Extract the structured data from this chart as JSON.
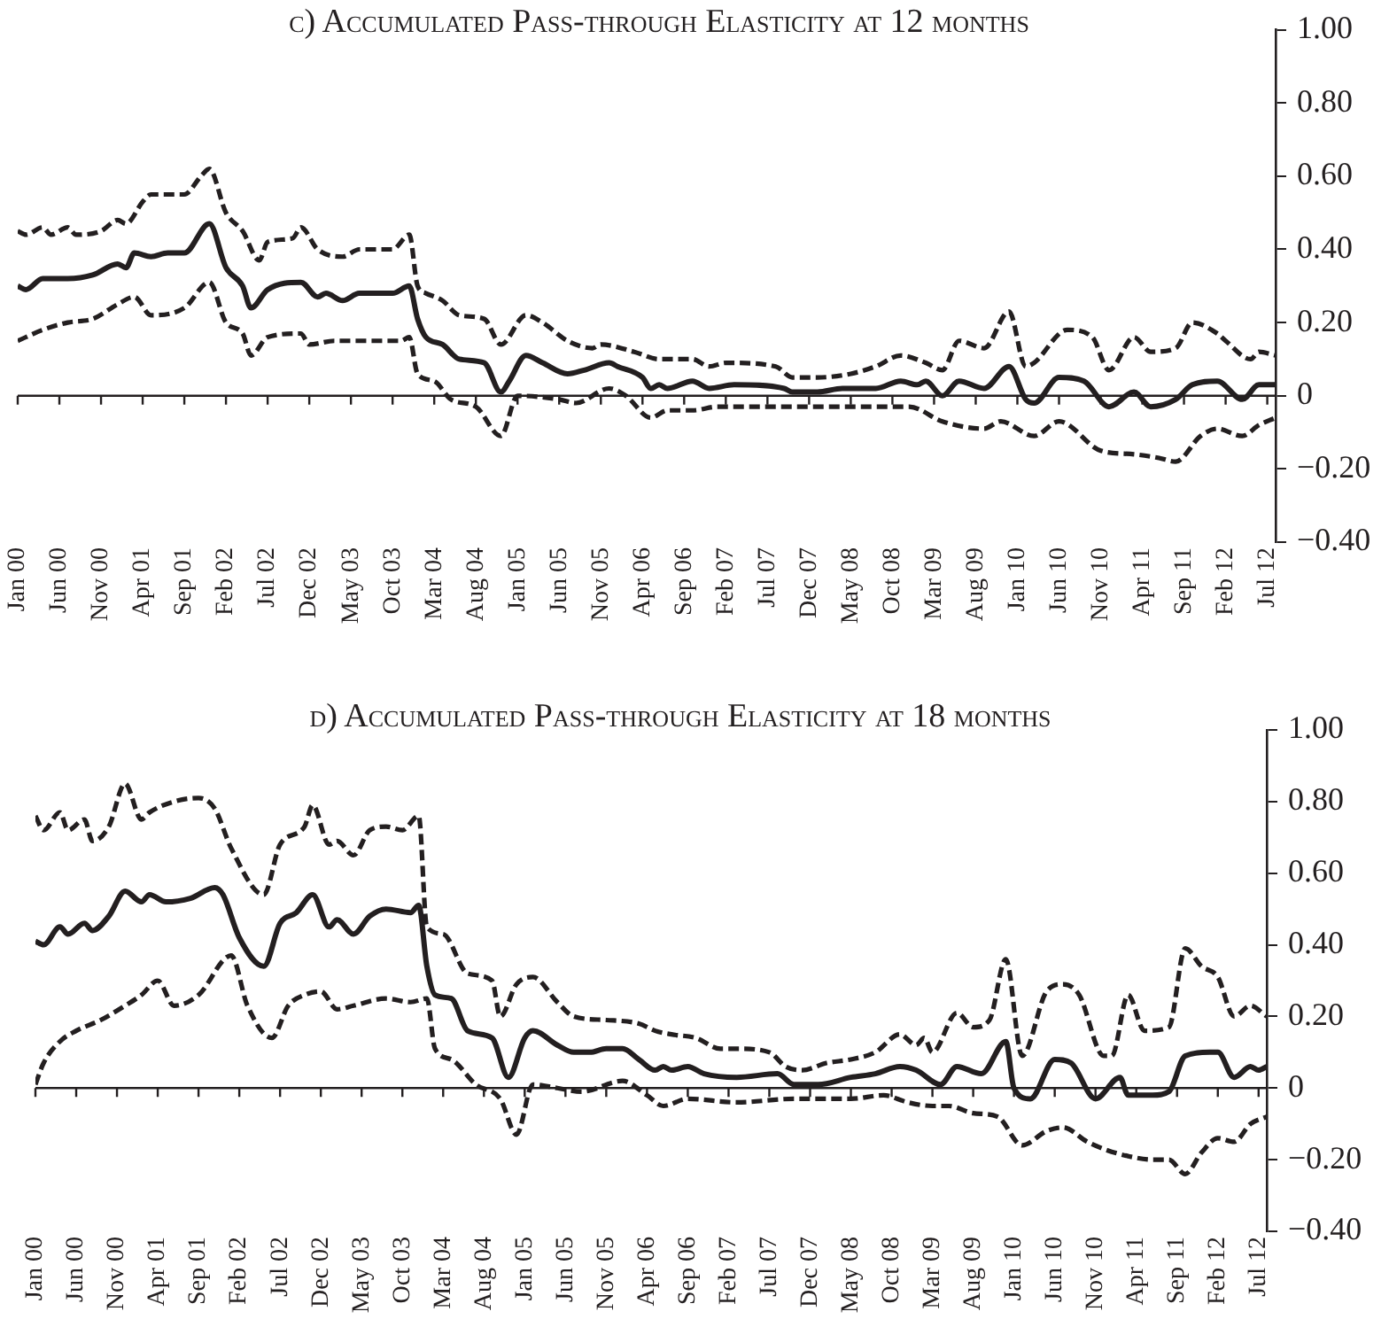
{
  "chart_data": [
    {
      "type": "line",
      "title": "c) Accumulated Pass-through Elasticity at 12 months",
      "xlim": [
        "2000-01",
        "2012-08"
      ],
      "ylim": [
        -0.4,
        1
      ],
      "yticks": [
        {
          "value": -0.4,
          "label": "−0.40"
        },
        {
          "value": -0.2,
          "label": "−0.20"
        },
        0,
        {
          "value": 0.2,
          "label": "0.20"
        },
        {
          "value": 0.4,
          "label": "0.40"
        },
        {
          "value": 0.6,
          "label": "0.60"
        },
        {
          "value": 0.8,
          "label": "0.80"
        },
        {
          "value": 1,
          "label": "1.00"
        }
      ],
      "xticks": [
        {
          "value": "2000-01",
          "label": "Jan 00"
        },
        {
          "value": "2000-06",
          "label": "Jun 00"
        },
        {
          "value": "2000-11",
          "label": "Nov 00"
        },
        {
          "value": "2001-04",
          "label": "Apr 01"
        },
        {
          "value": "2001-09",
          "label": "Sep 01"
        },
        {
          "value": "2002-02",
          "label": "Feb 02"
        },
        {
          "value": "2002-07",
          "label": "Jul 02"
        },
        {
          "value": "2002-12",
          "label": "Dec 02"
        },
        {
          "value": "2003-05",
          "label": "May 03"
        },
        {
          "value": "2003-10",
          "label": "Oct 03"
        },
        {
          "value": "2004-03",
          "label": "Mar 04"
        },
        {
          "value": "2004-08",
          "label": "Aug 04"
        },
        {
          "value": "2005-01",
          "label": "Jan 05"
        },
        {
          "value": "2005-06",
          "label": "Jun 05"
        },
        {
          "value": "2005-11",
          "label": "Nov 05"
        },
        {
          "value": "2006-04",
          "label": "Apr 06"
        },
        {
          "value": "2006-09",
          "label": "Sep 06"
        },
        {
          "value": "2007-02",
          "label": "Feb 07"
        },
        {
          "value": "2007-07",
          "label": "Jul 07"
        },
        {
          "value": "2007-12",
          "label": "Dec 07"
        },
        {
          "value": "2008-05",
          "label": "May 08"
        },
        {
          "value": "2008-10",
          "label": "Oct 08"
        },
        {
          "value": "2009-03",
          "label": "Mar 09"
        },
        {
          "value": "2009-08",
          "label": "Aug 09"
        },
        {
          "value": "2010-01",
          "label": "Jan 10"
        },
        {
          "value": "2010-06",
          "label": "Jun 10"
        },
        {
          "value": "2010-11",
          "label": "Nov 10"
        },
        {
          "value": "2011-04",
          "label": "Apr 11"
        },
        {
          "value": "2011-09",
          "label": "Sep 11"
        },
        {
          "value": "2012-02",
          "label": "Feb 12"
        },
        {
          "value": "2012-07",
          "label": "Jul 12"
        }
      ],
      "marker": "none",
      "series": [
        {
          "color": "#231f20",
          "line_style": "solid",
          "x": [
            "2000-01",
            "2000-02",
            "2000-04",
            "2000-07",
            "2000-10",
            "2001-01",
            "2001-02",
            "2001-03",
            "2001-05",
            "2001-07",
            "2001-09",
            "2001-12",
            "2002-02",
            "2002-04",
            "2002-05",
            "2002-07",
            "2002-11",
            "2003-01",
            "2003-02",
            "2003-04",
            "2003-06",
            "2003-10",
            "2003-12",
            "2004-01",
            "2004-02",
            "2004-04",
            "2004-06",
            "2004-09",
            "2004-11",
            "2004-12",
            "2005-02",
            "2005-04",
            "2005-07",
            "2005-09",
            "2005-12",
            "2006-01",
            "2006-04",
            "2006-05",
            "2006-06",
            "2006-07",
            "2006-10",
            "2006-12",
            "2007-03",
            "2007-09",
            "2007-10",
            "2008-01",
            "2008-04",
            "2008-08",
            "2008-11",
            "2009-01",
            "2009-02",
            "2009-04",
            "2009-06",
            "2009-09",
            "2009-12",
            "2010-02",
            "2010-03",
            "2010-06",
            "2010-09",
            "2010-12",
            "2011-03",
            "2011-05",
            "2011-08",
            "2011-10",
            "2012-01",
            "2012-04",
            "2012-06",
            "2012-08"
          ],
          "values": [
            0.3,
            0.29,
            0.32,
            0.32,
            0.33,
            0.36,
            0.35,
            0.39,
            0.38,
            0.39,
            0.39,
            0.47,
            0.35,
            0.3,
            0.24,
            0.29,
            0.31,
            0.27,
            0.28,
            0.26,
            0.28,
            0.28,
            0.3,
            0.21,
            0.16,
            0.14,
            0.1,
            0.09,
            0.01,
            0.04,
            0.11,
            0.09,
            0.06,
            0.07,
            0.09,
            0.08,
            0.05,
            0.02,
            0.03,
            0.02,
            0.04,
            0.02,
            0.03,
            0.02,
            0.01,
            0.01,
            0.02,
            0.02,
            0.04,
            0.03,
            0.04,
            0,
            0.04,
            0.02,
            0.08,
            -0.01,
            -0.02,
            0.05,
            0.04,
            -0.03,
            0.01,
            -0.03,
            -0.01,
            0.03,
            0.04,
            -0.01,
            0.03,
            0.03
          ]
        },
        {
          "color": "#231f20",
          "line_style": "dashed",
          "x": [
            "2000-01",
            "2000-02",
            "2000-04",
            "2000-05",
            "2000-07",
            "2000-08",
            "2000-11",
            "2001-01",
            "2001-02",
            "2001-04",
            "2001-05",
            "2001-09",
            "2001-11",
            "2001-12",
            "2002-02",
            "2002-04",
            "2002-06",
            "2002-07",
            "2002-10",
            "2002-11",
            "2003-01",
            "2003-04",
            "2003-06",
            "2003-10",
            "2003-12",
            "2004-01",
            "2004-02",
            "2004-04",
            "2004-06",
            "2004-09",
            "2004-11",
            "2005-02",
            "2005-04",
            "2005-07",
            "2005-10",
            "2005-11",
            "2006-03",
            "2006-06",
            "2006-10",
            "2006-12",
            "2007-02",
            "2007-08",
            "2007-10",
            "2008-01",
            "2008-05",
            "2008-08",
            "2008-11",
            "2009-02",
            "2009-04",
            "2009-06",
            "2009-09",
            "2009-12",
            "2010-02",
            "2010-03",
            "2010-07",
            "2010-10",
            "2010-12",
            "2011-03",
            "2011-05",
            "2011-08",
            "2011-10",
            "2012-01",
            "2012-02",
            "2012-05",
            "2012-06",
            "2012-08"
          ],
          "values": [
            0.45,
            0.44,
            0.46,
            0.44,
            0.46,
            0.44,
            0.45,
            0.48,
            0.47,
            0.53,
            0.55,
            0.55,
            0.6,
            0.62,
            0.5,
            0.45,
            0.37,
            0.42,
            0.43,
            0.46,
            0.4,
            0.38,
            0.4,
            0.4,
            0.44,
            0.3,
            0.28,
            0.26,
            0.22,
            0.21,
            0.14,
            0.22,
            0.2,
            0.15,
            0.13,
            0.14,
            0.12,
            0.1,
            0.1,
            0.08,
            0.09,
            0.08,
            0.05,
            0.05,
            0.06,
            0.08,
            0.11,
            0.09,
            0.07,
            0.15,
            0.13,
            0.23,
            0.08,
            0.09,
            0.18,
            0.16,
            0.07,
            0.16,
            0.12,
            0.13,
            0.2,
            0.17,
            0.15,
            0.1,
            0.12,
            0.11
          ]
        },
        {
          "color": "#231f20",
          "line_style": "dashed",
          "x": [
            "2000-01",
            "2000-04",
            "2000-07",
            "2000-10",
            "2001-01",
            "2001-03",
            "2001-05",
            "2001-09",
            "2001-12",
            "2002-02",
            "2002-04",
            "2002-05",
            "2002-07",
            "2002-11",
            "2002-12",
            "2003-03",
            "2003-06",
            "2003-11",
            "2003-12",
            "2004-01",
            "2004-03",
            "2004-05",
            "2004-08",
            "2004-11",
            "2005-01",
            "2005-06",
            "2005-08",
            "2005-12",
            "2006-02",
            "2006-05",
            "2006-07",
            "2006-10",
            "2007-01",
            "2007-11",
            "2008-09",
            "2008-12",
            "2009-04",
            "2009-09",
            "2009-11",
            "2010-03",
            "2010-06",
            "2010-11",
            "2011-03",
            "2011-06",
            "2011-08",
            "2011-11",
            "2012-01",
            "2012-04",
            "2012-06",
            "2012-08"
          ],
          "values": [
            0.15,
            0.18,
            0.2,
            0.21,
            0.25,
            0.27,
            0.22,
            0.24,
            0.31,
            0.2,
            0.17,
            0.11,
            0.16,
            0.17,
            0.14,
            0.15,
            0.15,
            0.15,
            0.16,
            0.06,
            0.04,
            -0.01,
            -0.03,
            -0.11,
            0,
            -0.01,
            -0.02,
            0.02,
            0,
            -0.06,
            -0.04,
            -0.04,
            -0.03,
            -0.03,
            -0.03,
            -0.03,
            -0.07,
            -0.09,
            -0.07,
            -0.11,
            -0.07,
            -0.15,
            -0.16,
            -0.17,
            -0.18,
            -0.11,
            -0.09,
            -0.11,
            -0.08,
            -0.06
          ]
        }
      ]
    },
    {
      "type": "line",
      "title": "d) Accumulated Pass-through Elasticity at 18 months",
      "xlim": [
        "2000-01",
        "2012-08"
      ],
      "ylim": [
        -0.4,
        1
      ],
      "yticks": [
        {
          "value": -0.4,
          "label": "−0.40"
        },
        {
          "value": -0.2,
          "label": "−0.20"
        },
        0,
        {
          "value": 0.2,
          "label": "0.20"
        },
        {
          "value": 0.4,
          "label": "0.40"
        },
        {
          "value": 0.6,
          "label": "0.60"
        },
        {
          "value": 0.8,
          "label": "0.80"
        },
        {
          "value": 1,
          "label": "1.00"
        }
      ],
      "xticks": [
        {
          "value": "2000-01",
          "label": "Jan 00"
        },
        {
          "value": "2000-06",
          "label": "Jun 00"
        },
        {
          "value": "2000-11",
          "label": "Nov 00"
        },
        {
          "value": "2001-04",
          "label": "Apr 01"
        },
        {
          "value": "2001-09",
          "label": "Sep 01"
        },
        {
          "value": "2002-02",
          "label": "Feb 02"
        },
        {
          "value": "2002-07",
          "label": "Jul 02"
        },
        {
          "value": "2002-12",
          "label": "Dec 02"
        },
        {
          "value": "2003-05",
          "label": "May 03"
        },
        {
          "value": "2003-10",
          "label": "Oct 03"
        },
        {
          "value": "2004-03",
          "label": "Mar 04"
        },
        {
          "value": "2004-08",
          "label": "Aug 04"
        },
        {
          "value": "2005-01",
          "label": "Jan 05"
        },
        {
          "value": "2005-06",
          "label": "Jun 05"
        },
        {
          "value": "2005-11",
          "label": "Nov 05"
        },
        {
          "value": "2006-04",
          "label": "Apr 06"
        },
        {
          "value": "2006-09",
          "label": "Sep 06"
        },
        {
          "value": "2007-02",
          "label": "Feb 07"
        },
        {
          "value": "2007-07",
          "label": "Jul 07"
        },
        {
          "value": "2007-12",
          "label": "Dec 07"
        },
        {
          "value": "2008-05",
          "label": "May 08"
        },
        {
          "value": "2008-10",
          "label": "Oct 08"
        },
        {
          "value": "2009-03",
          "label": "Mar 09"
        },
        {
          "value": "2009-08",
          "label": "Aug 09"
        },
        {
          "value": "2010-01",
          "label": "Jan 10"
        },
        {
          "value": "2010-06",
          "label": "Jun 10"
        },
        {
          "value": "2010-11",
          "label": "Nov 10"
        },
        {
          "value": "2011-04",
          "label": "Apr 11"
        },
        {
          "value": "2011-09",
          "label": "Sep 11"
        },
        {
          "value": "2012-02",
          "label": "Feb 12"
        },
        {
          "value": "2012-07",
          "label": "Jul 12"
        }
      ],
      "marker": "none",
      "series": [
        {
          "color": "#231f20",
          "line_style": "solid",
          "x": [
            "2000-01",
            "2000-02",
            "2000-04",
            "2000-05",
            "2000-07",
            "2000-08",
            "2000-10",
            "2000-12",
            "2001-02",
            "2001-03",
            "2001-05",
            "2001-08",
            "2001-11",
            "2001-12",
            "2002-02",
            "2002-05",
            "2002-07",
            "2002-09",
            "2002-11",
            "2003-01",
            "2003-02",
            "2003-04",
            "2003-06",
            "2003-08",
            "2003-11",
            "2003-12",
            "2004-01",
            "2004-02",
            "2004-04",
            "2004-06",
            "2004-09",
            "2004-11",
            "2005-01",
            "2005-02",
            "2005-05",
            "2005-07",
            "2005-09",
            "2005-11",
            "2006-01",
            "2006-03",
            "2006-05",
            "2006-06",
            "2006-07",
            "2006-09",
            "2006-11",
            "2007-03",
            "2007-08",
            "2007-10",
            "2008-01",
            "2008-05",
            "2008-08",
            "2008-11",
            "2009-01",
            "2009-04",
            "2009-06",
            "2009-09",
            "2009-12",
            "2010-01",
            "2010-03",
            "2010-06",
            "2010-08",
            "2010-11",
            "2011-02",
            "2011-03",
            "2011-06",
            "2011-08",
            "2011-10",
            "2012-01",
            "2012-02",
            "2012-04",
            "2012-06",
            "2012-07",
            "2012-08"
          ],
          "values": [
            0.41,
            0.4,
            0.45,
            0.43,
            0.46,
            0.44,
            0.48,
            0.55,
            0.52,
            0.54,
            0.52,
            0.53,
            0.56,
            0.54,
            0.42,
            0.34,
            0.46,
            0.49,
            0.54,
            0.45,
            0.47,
            0.43,
            0.48,
            0.5,
            0.49,
            0.51,
            0.34,
            0.26,
            0.25,
            0.16,
            0.14,
            0.03,
            0.14,
            0.16,
            0.12,
            0.1,
            0.1,
            0.11,
            0.11,
            0.08,
            0.05,
            0.06,
            0.05,
            0.06,
            0.04,
            0.03,
            0.04,
            0.01,
            0.01,
            0.03,
            0.04,
            0.06,
            0.05,
            0.01,
            0.06,
            0.04,
            0.13,
            0,
            -0.03,
            0.08,
            0.07,
            -0.03,
            0.03,
            -0.02,
            -0.02,
            -0.01,
            0.09,
            0.1,
            0.1,
            0.03,
            0.06,
            0.05,
            0.06
          ]
        },
        {
          "color": "#231f20",
          "line_style": "dashed",
          "x": [
            "2000-01",
            "2000-02",
            "2000-04",
            "2000-05",
            "2000-07",
            "2000-08",
            "2000-10",
            "2000-12",
            "2001-02",
            "2001-03",
            "2001-06",
            "2001-09",
            "2001-11",
            "2002-01",
            "2002-05",
            "2002-07",
            "2002-10",
            "2002-11",
            "2003-01",
            "2003-02",
            "2003-04",
            "2003-06",
            "2003-08",
            "2003-10",
            "2003-12",
            "2004-01",
            "2004-03",
            "2004-06",
            "2004-09",
            "2004-10",
            "2004-12",
            "2005-02",
            "2005-05",
            "2005-07",
            "2005-11",
            "2006-03",
            "2006-05",
            "2006-07",
            "2006-10",
            "2007-01",
            "2007-03",
            "2007-07",
            "2007-09",
            "2007-11",
            "2008-02",
            "2008-05",
            "2008-08",
            "2008-11",
            "2009-01",
            "2009-02",
            "2009-03",
            "2009-06",
            "2009-08",
            "2009-10",
            "2009-12",
            "2010-02",
            "2010-05",
            "2010-07",
            "2010-09",
            "2010-12",
            "2011-01",
            "2011-03",
            "2011-05",
            "2011-08",
            "2011-10",
            "2011-12",
            "2012-02",
            "2012-04",
            "2012-06",
            "2012-08"
          ],
          "values": [
            0.76,
            0.72,
            0.77,
            0.72,
            0.75,
            0.69,
            0.73,
            0.85,
            0.75,
            0.77,
            0.8,
            0.81,
            0.78,
            0.67,
            0.54,
            0.68,
            0.73,
            0.79,
            0.68,
            0.69,
            0.65,
            0.72,
            0.73,
            0.72,
            0.76,
            0.45,
            0.43,
            0.32,
            0.3,
            0.2,
            0.29,
            0.31,
            0.24,
            0.2,
            0.19,
            0.18,
            0.16,
            0.15,
            0.14,
            0.11,
            0.11,
            0.1,
            0.06,
            0.05,
            0.07,
            0.08,
            0.1,
            0.15,
            0.12,
            0.14,
            0.1,
            0.21,
            0.17,
            0.19,
            0.36,
            0.09,
            0.27,
            0.29,
            0.26,
            0.09,
            0.09,
            0.26,
            0.16,
            0.17,
            0.39,
            0.34,
            0.31,
            0.2,
            0.23,
            0.2
          ]
        },
        {
          "color": "#231f20",
          "line_style": "dashed",
          "x": [
            "2000-01",
            "2000-02",
            "2000-04",
            "2000-06",
            "2000-09",
            "2000-12",
            "2001-02",
            "2001-04",
            "2001-06",
            "2001-09",
            "2002-01",
            "2002-03",
            "2002-06",
            "2002-08",
            "2002-10",
            "2002-12",
            "2003-02",
            "2003-04",
            "2003-08",
            "2003-11",
            "2004-01",
            "2004-02",
            "2004-04",
            "2004-07",
            "2004-10",
            "2004-12",
            "2005-02",
            "2005-05",
            "2005-08",
            "2006-01",
            "2006-04",
            "2006-06",
            "2006-09",
            "2007-03",
            "2007-10",
            "2008-05",
            "2008-09",
            "2008-12",
            "2009-03",
            "2009-05",
            "2009-08",
            "2009-11",
            "2010-02",
            "2010-05",
            "2010-07",
            "2010-10",
            "2010-12",
            "2011-03",
            "2011-06",
            "2011-08",
            "2011-10",
            "2011-12",
            "2012-02",
            "2012-04",
            "2012-06",
            "2012-08"
          ],
          "values": [
            0.01,
            0.07,
            0.13,
            0.16,
            0.19,
            0.23,
            0.26,
            0.3,
            0.23,
            0.26,
            0.37,
            0.23,
            0.14,
            0.23,
            0.26,
            0.27,
            0.22,
            0.23,
            0.25,
            0.24,
            0.25,
            0.11,
            0.08,
            0.01,
            -0.03,
            -0.13,
            0.01,
            0,
            -0.01,
            0.02,
            -0.02,
            -0.05,
            -0.03,
            -0.04,
            -0.03,
            -0.03,
            -0.02,
            -0.04,
            -0.05,
            -0.05,
            -0.07,
            -0.08,
            -0.16,
            -0.12,
            -0.11,
            -0.15,
            -0.17,
            -0.19,
            -0.2,
            -0.2,
            -0.24,
            -0.18,
            -0.14,
            -0.15,
            -0.1,
            -0.08
          ]
        }
      ]
    }
  ]
}
